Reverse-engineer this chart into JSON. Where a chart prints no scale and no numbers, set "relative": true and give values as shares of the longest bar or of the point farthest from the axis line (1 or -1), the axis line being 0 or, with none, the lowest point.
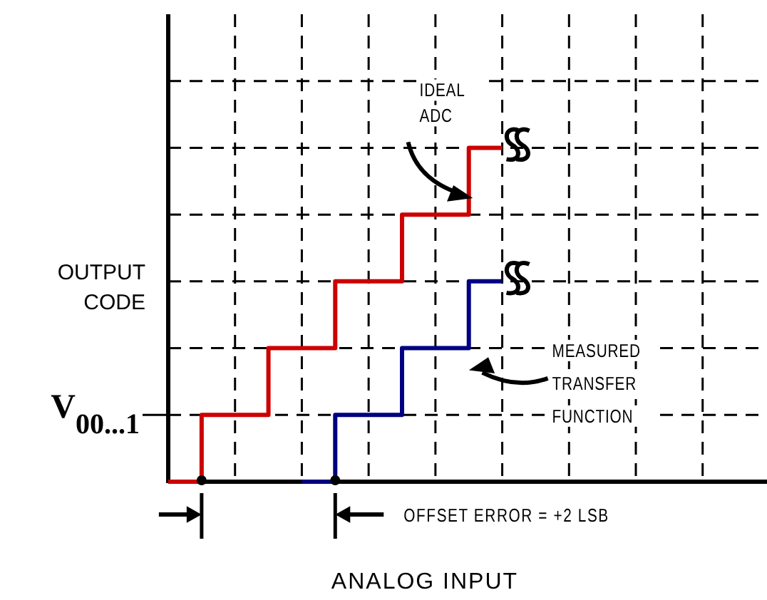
{
  "chart_data": {
    "type": "step",
    "relative": true,
    "xlabel": "ANALOG INPUT",
    "ylabel": "OUTPUT CODE",
    "grid": true,
    "categories": [
      null,
      null,
      null,
      null,
      null,
      null,
      null,
      null,
      null,
      null,
      null,
      null,
      null,
      null,
      null,
      null,
      null,
      null
    ],
    "series": [
      {
        "name": "IDEAL ADC",
        "color": "#cc0000",
        "values": [
          0,
          0.2,
          0.2,
          0.4,
          0.4,
          0.6,
          0.6,
          0.8,
          0.8,
          1,
          1,
          null,
          null,
          null,
          null,
          null,
          null,
          null
        ]
      },
      {
        "name": "MEASURED TRANSFER FUNCTION",
        "color": "#000080",
        "values": [
          null,
          null,
          null,
          null,
          0,
          0.2,
          0.2,
          0.4,
          0.4,
          0.6,
          0.6,
          null,
          null,
          null,
          null,
          null,
          null,
          null
        ]
      }
    ],
    "annotations": [
      "V$_{00...1}$",
      "OFFSET ERROR = +2 LSB"
    ]
  }
}
